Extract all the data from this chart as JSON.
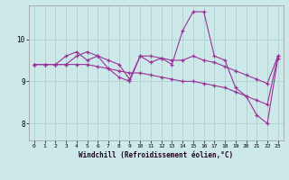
{
  "title": "",
  "xlabel": "Windchill (Refroidissement éolien,°C)",
  "ylabel": "",
  "background_color": "#cce8e8",
  "grid_color": "#aacccc",
  "line_color": "#993399",
  "xlim": [
    -0.5,
    23.5
  ],
  "ylim": [
    7.6,
    10.8
  ],
  "yticks": [
    8,
    9,
    10
  ],
  "xticks": [
    0,
    1,
    2,
    3,
    4,
    5,
    6,
    7,
    8,
    9,
    10,
    11,
    12,
    13,
    14,
    15,
    16,
    17,
    18,
    19,
    20,
    21,
    22,
    23
  ],
  "line1_x": [
    0,
    1,
    2,
    3,
    4,
    5,
    6,
    7,
    8,
    9,
    10,
    11,
    12,
    13,
    14,
    15,
    16,
    17,
    18,
    19,
    20,
    21,
    22,
    23
  ],
  "line1_y": [
    9.4,
    9.4,
    9.4,
    9.4,
    9.4,
    9.4,
    9.35,
    9.3,
    9.25,
    9.2,
    9.2,
    9.15,
    9.1,
    9.05,
    9.0,
    9.0,
    8.95,
    8.9,
    8.85,
    8.75,
    8.65,
    8.55,
    8.45,
    9.6
  ],
  "line2_x": [
    0,
    1,
    2,
    3,
    4,
    5,
    6,
    7,
    8,
    9,
    10,
    11,
    12,
    13,
    14,
    15,
    16,
    17,
    18,
    19,
    20,
    21,
    22,
    23
  ],
  "line2_y": [
    9.4,
    9.4,
    9.4,
    9.6,
    9.7,
    9.5,
    9.6,
    9.3,
    9.1,
    9.0,
    9.6,
    9.45,
    9.55,
    9.4,
    10.2,
    10.65,
    10.65,
    9.6,
    9.5,
    8.85,
    8.65,
    8.2,
    8.0,
    9.55
  ],
  "line3_x": [
    0,
    1,
    2,
    3,
    4,
    5,
    6,
    7,
    8,
    9,
    10,
    11,
    12,
    13,
    14,
    15,
    16,
    17,
    18,
    19,
    20,
    21,
    22,
    23
  ],
  "line3_y": [
    9.4,
    9.4,
    9.4,
    9.4,
    9.6,
    9.7,
    9.6,
    9.5,
    9.4,
    9.05,
    9.6,
    9.6,
    9.55,
    9.5,
    9.5,
    9.6,
    9.5,
    9.45,
    9.35,
    9.25,
    9.15,
    9.05,
    8.95,
    9.6
  ]
}
